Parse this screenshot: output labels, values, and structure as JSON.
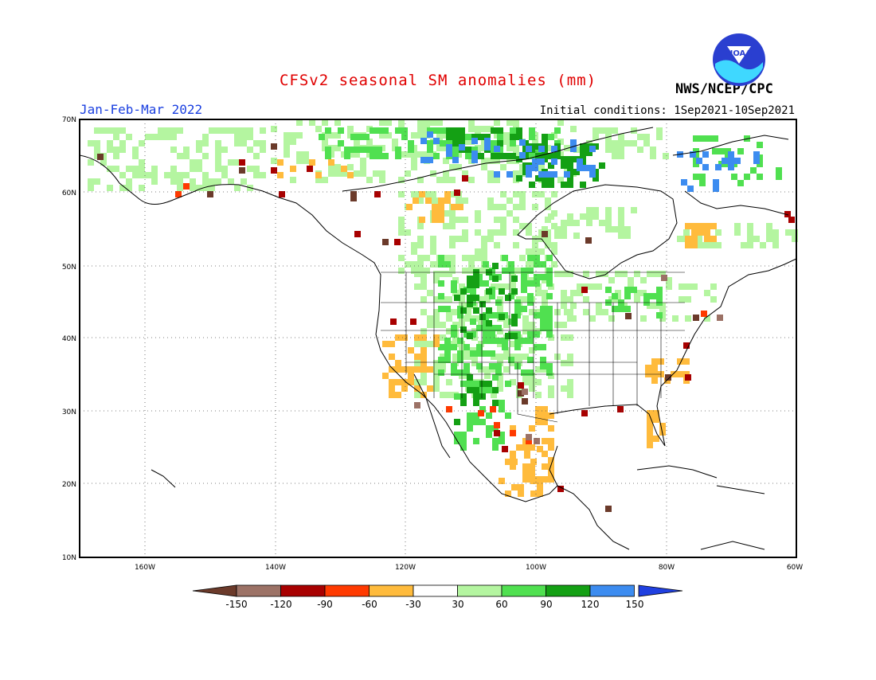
{
  "header": {
    "title": "CFSv2 seasonal SM anomalies (mm)",
    "period": "Jan-Feb-Mar 2022",
    "initial_conditions": "Initial conditions: 1Sep2021-10Sep2021",
    "agency": "NWS/NCEP/CPC",
    "logo_text": "NOAA"
  },
  "map": {
    "region": "North America",
    "lat_labels": [
      "70N",
      "60N",
      "50N",
      "40N",
      "30N",
      "20N",
      "10N"
    ],
    "lon_labels": [
      "160W",
      "140W",
      "120W",
      "100W",
      "80W",
      "60W"
    ],
    "gridlines": "dotted"
  },
  "legend": {
    "ticks": [
      "-150",
      "-120",
      "-90",
      "-60",
      "-30",
      "30",
      "60",
      "90",
      "120",
      "150"
    ],
    "colors": [
      "#6b3a2a",
      "#9c7266",
      "#a80000",
      "#ff3a00",
      "#ffbb3c",
      "#ffffff",
      "#b4f5a0",
      "#50e050",
      "#14a014",
      "#3c8cf0",
      "#2040e0"
    ]
  },
  "anomaly_colors": {
    "very_dry": "#6b3a2a",
    "dry_-120": "#9c7266",
    "dry_-90": "#a80000",
    "dry_-60": "#ff3a00",
    "dry_-30": "#ffbb3c",
    "wet_30": "#b4f5a0",
    "wet_60": "#50e050",
    "wet_90": "#14a014",
    "wet_120": "#3c8cf0"
  }
}
